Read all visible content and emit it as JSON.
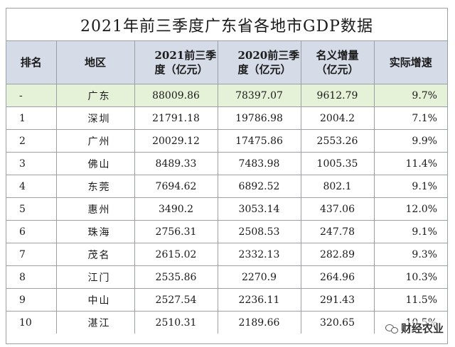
{
  "title": "2021年前三季度广东省各地市GDP数据",
  "headers": {
    "rank": "排名",
    "region": "地区",
    "gdp2021": [
      "2021前三季",
      "度（亿元）"
    ],
    "gdp2020": [
      "2020前三季",
      "度（亿元）"
    ],
    "increase": [
      "名义增量",
      "（亿元）"
    ],
    "growth": "实际增速"
  },
  "rows": [
    {
      "rank": "-",
      "region": "广东",
      "gdp2021": "88009.86",
      "gdp2020": "78397.07",
      "increase": "9612.79",
      "growth": "9.7%"
    },
    {
      "rank": "1",
      "region": "深圳",
      "gdp2021": "21791.18",
      "gdp2020": "19786.98",
      "increase": "2004.2",
      "growth": "7.1%"
    },
    {
      "rank": "2",
      "region": "广州",
      "gdp2021": "20029.12",
      "gdp2020": "17475.86",
      "increase": "2553.26",
      "growth": "9.9%"
    },
    {
      "rank": "3",
      "region": "佛山",
      "gdp2021": "8489.33",
      "gdp2020": "7483.98",
      "increase": "1005.35",
      "growth": "11.4%"
    },
    {
      "rank": "4",
      "region": "东莞",
      "gdp2021": "7694.62",
      "gdp2020": "6892.52",
      "increase": "802.1",
      "growth": "9.1%"
    },
    {
      "rank": "5",
      "region": "惠州",
      "gdp2021": "3490.2",
      "gdp2020": "3053.14",
      "increase": "437.06",
      "growth": "12.0%"
    },
    {
      "rank": "6",
      "region": "珠海",
      "gdp2021": "2756.31",
      "gdp2020": "2508.53",
      "increase": "247.78",
      "growth": "9.1%"
    },
    {
      "rank": "7",
      "region": "茂名",
      "gdp2021": "2615.02",
      "gdp2020": "2332.13",
      "increase": "282.89",
      "growth": "9.3%"
    },
    {
      "rank": "8",
      "region": "江门",
      "gdp2021": "2535.86",
      "gdp2020": "2270.9",
      "increase": "264.96",
      "growth": "10.3%"
    },
    {
      "rank": "9",
      "region": "中山",
      "gdp2021": "2527.54",
      "gdp2020": "2236.11",
      "increase": "291.43",
      "growth": "11.5%"
    },
    {
      "rank": "10",
      "region": "湛江",
      "gdp2021": "2510.31",
      "gdp2020": "2189.66",
      "increase": "320.65",
      "growth": "10.5%"
    }
  ],
  "watermark": {
    "text": "财经农业",
    "icon": "wechat-icon"
  },
  "colors": {
    "header_bg": "#d5dce8",
    "highlight_row": "#e6f2d8",
    "border": "#9aa0a6"
  }
}
